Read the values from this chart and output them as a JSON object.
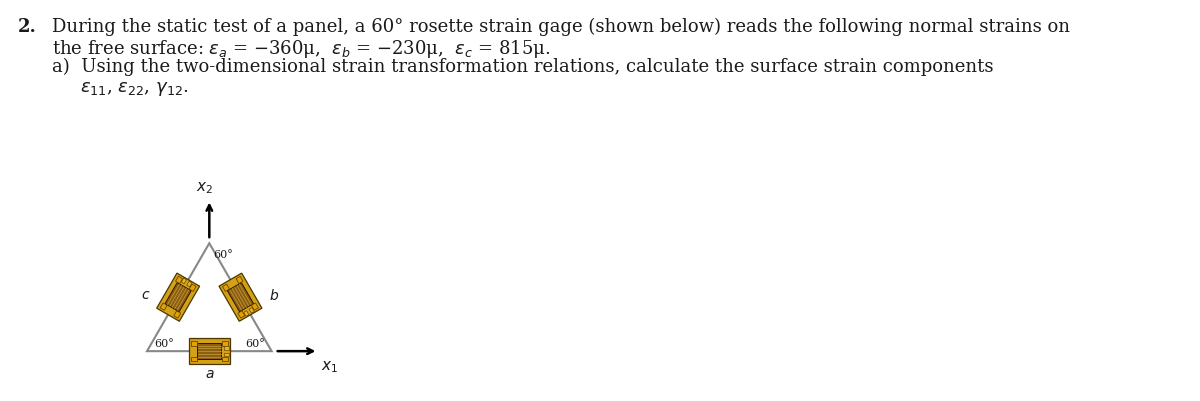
{
  "bg_color": "#ffffff",
  "text_color": "#1a1a1a",
  "triangle_color": "#888888",
  "gage_outer_color": "#d4a017",
  "gage_inner_color": "#8B5E10",
  "gage_wire_color": "#b8860b",
  "gage_pad_color": "#e8a000",
  "fig_width": 12.0,
  "fig_height": 4.02,
  "dpi": 100,
  "font_size_main": 13,
  "font_size_sub": 11,
  "font_size_diagram": 10
}
